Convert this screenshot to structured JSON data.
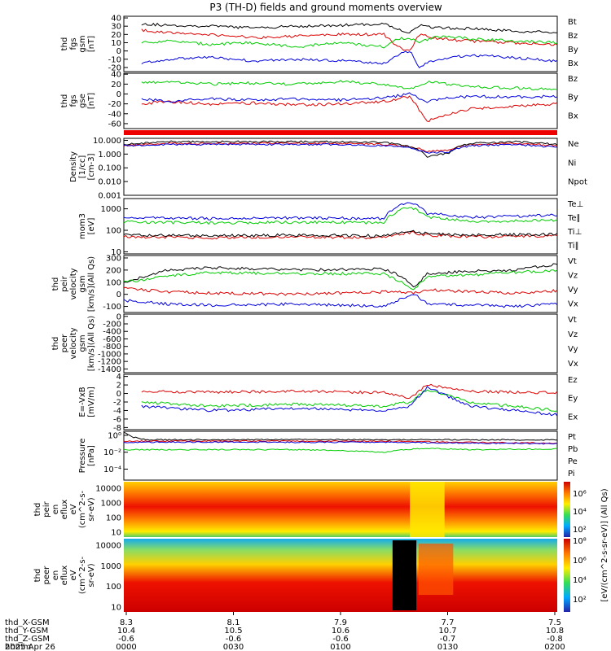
{
  "chart_data": {
    "type": "line",
    "title": "P3 (TH-D) fields and ground moments overview",
    "date_label": "2025 Apr 26",
    "x_axis": {
      "ticks": [
        "0000",
        "0030",
        "0100",
        "0130",
        "0200"
      ],
      "rows": [
        {
          "label": "thd_X-GSM",
          "values": [
            "8.3",
            "8.1",
            "7.9",
            "7.7",
            "7.5"
          ]
        },
        {
          "label": "thd_Y-GSM",
          "values": [
            "10.4",
            "10.5",
            "10.6",
            "10.7",
            "10.8"
          ]
        },
        {
          "label": "thd_Z-GSM",
          "values": [
            "-0.6",
            "-0.6",
            "-0.6",
            "-0.7",
            "-0.8"
          ]
        },
        {
          "label": "hhmm",
          "values": [
            "0000",
            "0030",
            "0100",
            "0130",
            "0200"
          ]
        }
      ]
    },
    "panels": [
      {
        "id": "fgs",
        "ylabel": [
          "thd",
          "fgs",
          "gsm",
          "[nT]"
        ],
        "ylim": [
          -25,
          42
        ],
        "yticks": [
          -20,
          -10,
          0,
          10,
          20,
          30,
          40
        ],
        "series": [
          {
            "name": "Bt",
            "color": "#000000",
            "x": [
              0.04,
              0.1,
              0.2,
              0.3,
              0.4,
              0.5,
              0.6,
              0.63,
              0.66,
              0.68,
              0.72,
              0.8,
              0.9,
              1.0
            ],
            "y": [
              33,
              31,
              30,
              28,
              30,
              31,
              33,
              27,
              22,
              31,
              28,
              27,
              24,
              22
            ]
          },
          {
            "name": "Bz",
            "color": "#dd0000",
            "x": [
              0.04,
              0.1,
              0.2,
              0.3,
              0.4,
              0.5,
              0.6,
              0.63,
              0.66,
              0.68,
              0.72,
              0.8,
              0.9,
              1.0
            ],
            "y": [
              25,
              22,
              20,
              16,
              18,
              20,
              20,
              5,
              0,
              20,
              15,
              12,
              10,
              8
            ]
          },
          {
            "name": "By",
            "color": "#00cc00",
            "x": [
              0.04,
              0.1,
              0.2,
              0.3,
              0.4,
              0.5,
              0.6,
              0.63,
              0.66,
              0.68,
              0.72,
              0.8,
              0.9,
              1.0
            ],
            "y": [
              10,
              12,
              8,
              10,
              5,
              10,
              5,
              15,
              15,
              10,
              18,
              15,
              12,
              10
            ]
          },
          {
            "name": "Bx",
            "color": "#0000dd",
            "x": [
              0.04,
              0.1,
              0.2,
              0.3,
              0.4,
              0.5,
              0.6,
              0.63,
              0.66,
              0.68,
              0.72,
              0.8,
              0.9,
              1.0
            ],
            "y": [
              -15,
              -10,
              -8,
              -12,
              -10,
              -12,
              -15,
              -5,
              0,
              -20,
              -10,
              -5,
              -8,
              -12
            ]
          }
        ]
      },
      {
        "id": "fgs-gse",
        "ylabel": [
          "thd",
          "fgs",
          "gse",
          "[nT]"
        ],
        "ylim": [
          -70,
          42
        ],
        "yticks": [
          -60,
          -40,
          -20,
          0,
          20,
          40
        ],
        "series": [
          {
            "name": "Bz",
            "color": "#dd0000",
            "x": [
              0.04,
              0.1,
              0.2,
              0.3,
              0.4,
              0.5,
              0.6,
              0.66,
              0.7,
              0.75,
              0.8,
              0.9,
              1.0
            ],
            "y": [
              -20,
              -15,
              -20,
              -18,
              -22,
              -20,
              -15,
              -5,
              -55,
              -40,
              -30,
              -25,
              -20
            ]
          },
          {
            "name": "By",
            "color": "#00cc00",
            "x": [
              0.04,
              0.1,
              0.2,
              0.3,
              0.4,
              0.5,
              0.6,
              0.66,
              0.7,
              0.75,
              0.8,
              0.9,
              1.0
            ],
            "y": [
              22,
              25,
              20,
              22,
              20,
              25,
              20,
              10,
              25,
              20,
              15,
              12,
              10
            ]
          },
          {
            "name": "Bx",
            "color": "#0000dd",
            "x": [
              0.04,
              0.1,
              0.2,
              0.3,
              0.4,
              0.5,
              0.6,
              0.66,
              0.7,
              0.75,
              0.8,
              0.9,
              1.0
            ],
            "y": [
              -10,
              -15,
              -10,
              -12,
              -10,
              -12,
              -8,
              0,
              -15,
              -8,
              -5,
              -6,
              -5
            ]
          }
        ]
      },
      {
        "id": "density",
        "ylabel": [
          "Density",
          "[1/cc]",
          "[cm-3]"
        ],
        "log": true,
        "ylim": [
          0.001,
          14
        ],
        "ytick_labels": [
          "10.000",
          "1.000",
          "0.100",
          "0.010",
          "0.001"
        ],
        "series": [
          {
            "name": "Ne",
            "color": "#dd0000",
            "x": [
              0.0,
              0.1,
              0.3,
              0.5,
              0.6,
              0.65,
              0.7,
              0.75,
              0.8,
              0.9,
              1.0
            ],
            "y": [
              4,
              6,
              6,
              6,
              5,
              4,
              1.5,
              2,
              5,
              6,
              4
            ]
          },
          {
            "name": "Ni",
            "color": "#000000",
            "x": [
              0.0,
              0.1,
              0.3,
              0.5,
              0.6,
              0.65,
              0.7,
              0.75,
              0.8,
              0.9,
              1.0
            ],
            "y": [
              5,
              8,
              8,
              8,
              7,
              4,
              0.6,
              1.2,
              6,
              8,
              5
            ]
          },
          {
            "name": "Npot",
            "color": "#0000dd",
            "x": [
              0.0,
              0.1,
              0.3,
              0.5,
              0.6,
              0.65,
              0.7,
              0.75,
              0.8,
              0.9,
              1.0
            ],
            "y": [
              4,
              5,
              5,
              5,
              4,
              3,
              1.2,
              1.5,
              4,
              5,
              3
            ]
          }
        ]
      },
      {
        "id": "temperature",
        "ylabel": [
          "mom3",
          "[eV]"
        ],
        "log": true,
        "ylim": [
          8,
          3000
        ],
        "ytick_labels": [
          "1000",
          "100",
          "10"
        ],
        "series": [
          {
            "name": "Te⊥",
            "color": "#dd0000",
            "x": [
              0.0,
              0.2,
              0.4,
              0.6,
              0.66,
              0.7,
              0.8,
              1.0
            ],
            "y": [
              50,
              45,
              50,
              45,
              80,
              60,
              50,
              55
            ]
          },
          {
            "name": "Te∥",
            "color": "#000000",
            "x": [
              0.0,
              0.2,
              0.4,
              0.6,
              0.66,
              0.7,
              0.8,
              1.0
            ],
            "y": [
              60,
              55,
              60,
              55,
              90,
              70,
              60,
              65
            ]
          },
          {
            "name": "Ti⊥",
            "color": "#0000dd",
            "x": [
              0.0,
              0.2,
              0.4,
              0.6,
              0.66,
              0.7,
              0.8,
              1.0
            ],
            "y": [
              400,
              350,
              380,
              350,
              2000,
              600,
              400,
              500
            ]
          },
          {
            "name": "Ti∥",
            "color": "#00cc00",
            "x": [
              0.0,
              0.2,
              0.4,
              0.6,
              0.66,
              0.7,
              0.8,
              1.0
            ],
            "y": [
              250,
              220,
              240,
              220,
              1200,
              400,
              250,
              300
            ]
          }
        ]
      },
      {
        "id": "peir-velocity",
        "ylabel": [
          "thd",
          "peir",
          "velocity",
          "gsm",
          "[km/s](All Qs)"
        ],
        "ylim": [
          -150,
          320
        ],
        "yticks": [
          -100,
          0,
          100,
          200,
          300
        ],
        "series": [
          {
            "name": "Vt",
            "color": "#000000",
            "x": [
              0.0,
              0.1,
              0.2,
              0.4,
              0.6,
              0.64,
              0.67,
              0.7,
              0.8,
              0.9,
              1.0
            ],
            "y": [
              100,
              200,
              220,
              200,
              210,
              150,
              60,
              170,
              190,
              200,
              250
            ]
          },
          {
            "name": "Vz",
            "color": "#dd0000",
            "x": [
              0.0,
              0.1,
              0.2,
              0.4,
              0.6,
              0.64,
              0.67,
              0.7,
              0.8,
              0.9,
              1.0
            ],
            "y": [
              50,
              20,
              10,
              0,
              20,
              20,
              10,
              40,
              20,
              10,
              30
            ]
          },
          {
            "name": "Vy",
            "color": "#00cc00",
            "x": [
              0.0,
              0.1,
              0.2,
              0.4,
              0.6,
              0.64,
              0.67,
              0.7,
              0.8,
              0.9,
              1.0
            ],
            "y": [
              100,
              150,
              180,
              170,
              170,
              100,
              40,
              150,
              160,
              180,
              200
            ]
          },
          {
            "name": "Vx",
            "color": "#0000dd",
            "x": [
              0.0,
              0.1,
              0.2,
              0.4,
              0.6,
              0.64,
              0.67,
              0.7,
              0.8,
              0.9,
              1.0
            ],
            "y": [
              -50,
              -80,
              -90,
              -80,
              -100,
              -40,
              0,
              -80,
              -90,
              -100,
              -80
            ]
          }
        ]
      },
      {
        "id": "peer-velocity",
        "ylabel": [
          "thd",
          "peer",
          "velocity",
          "gsm",
          "[km/s](All Qs)"
        ],
        "ylim": [
          -1500,
          60
        ],
        "yticks": [
          0,
          -200,
          -400,
          -600,
          -800,
          -1000,
          -1200,
          -1400
        ],
        "series": [
          {
            "name": "Vt",
            "color": "#000000",
            "x": [],
            "y": []
          },
          {
            "name": "Vz",
            "color": "#dd0000",
            "x": [],
            "y": []
          },
          {
            "name": "Vy",
            "color": "#00cc00",
            "x": [],
            "y": []
          },
          {
            "name": "Vx",
            "color": "#0000dd",
            "x": [],
            "y": []
          }
        ]
      },
      {
        "id": "efield",
        "ylabel": [
          "E=-VxB",
          "[mV/m]"
        ],
        "ylim": [
          -8.5,
          4.5
        ],
        "yticks": [
          -8,
          -6,
          -4,
          -2,
          0,
          2,
          4
        ],
        "series": [
          {
            "name": "Ez",
            "color": "#dd0000",
            "x": [
              0.04,
              0.2,
              0.4,
              0.6,
              0.66,
              0.7,
              0.8,
              0.9,
              1.0
            ],
            "y": [
              0.5,
              0.3,
              0.5,
              0.2,
              -1,
              2,
              0.5,
              0.3,
              0.2
            ]
          },
          {
            "name": "Ey",
            "color": "#00cc00",
            "x": [
              0.04,
              0.2,
              0.4,
              0.6,
              0.66,
              0.7,
              0.8,
              0.9,
              1.0
            ],
            "y": [
              -2,
              -3,
              -2.5,
              -3,
              -2,
              1,
              -2,
              -3,
              -4
            ]
          },
          {
            "name": "Ex",
            "color": "#0000dd",
            "x": [
              0.04,
              0.2,
              0.4,
              0.6,
              0.66,
              0.7,
              0.8,
              0.9,
              1.0
            ],
            "y": [
              -3,
              -4,
              -3.5,
              -4,
              -3,
              1.5,
              -3,
              -4,
              -5
            ]
          }
        ]
      },
      {
        "id": "pressure",
        "ylabel": [
          "Pressure",
          "[nPa]"
        ],
        "log": true,
        "ylim": [
          5e-06,
          3
        ],
        "ytick_labels": [
          "10^0",
          "10^-2",
          "10^-4"
        ],
        "series": [
          {
            "name": "Pt",
            "color": "#000000",
            "x": [
              0.0,
              0.02,
              0.05,
              0.2,
              0.4,
              0.6,
              0.8,
              1.0
            ],
            "y": [
              2,
              0.6,
              0.3,
              0.3,
              0.32,
              0.3,
              0.3,
              0.28
            ]
          },
          {
            "name": "Pb",
            "color": "#dd0000",
            "x": [
              0.0,
              0.2,
              0.4,
              0.6,
              0.8,
              1.0
            ],
            "y": [
              0.2,
              0.22,
              0.2,
              0.2,
              0.15,
              0.12
            ]
          },
          {
            "name": "Pe",
            "color": "#00cc00",
            "x": [
              0.0,
              0.2,
              0.4,
              0.6,
              0.7,
              0.8,
              1.0
            ],
            "y": [
              0.02,
              0.02,
              0.02,
              0.01,
              0.03,
              0.02,
              0.025
            ]
          },
          {
            "name": "Pi",
            "color": "#0000dd",
            "x": [
              0.0,
              0.2,
              0.4,
              0.6,
              0.8,
              1.0
            ],
            "y": [
              0.15,
              0.16,
              0.15,
              0.15,
              0.12,
              0.1
            ]
          }
        ]
      },
      {
        "id": "peir-spectrogram",
        "type": "heatmap",
        "ylabel": [
          "thd",
          "peir",
          "en",
          "eflux",
          "eV",
          "(cm^2-s-",
          "sr-eV)"
        ],
        "ytick_labels": [
          "10000",
          "1000",
          "100",
          "10"
        ]
      },
      {
        "id": "peer-spectrogram",
        "type": "heatmap",
        "ylabel": [
          "thd",
          "peer",
          "en",
          "eflux",
          "eV",
          "(cm^2-s-",
          "sr-eV)"
        ],
        "ytick_labels": [
          "10000",
          "1000",
          "100",
          "10"
        ]
      }
    ],
    "colorbar": {
      "label": "[eV/(cm^2-s-sr-eV)] (All Qs)",
      "upper_ticks": [
        "10^6",
        "10^4",
        "10^2"
      ],
      "lower_ticks": [
        "10^8",
        "10^6",
        "10^4",
        "10^2"
      ]
    }
  }
}
